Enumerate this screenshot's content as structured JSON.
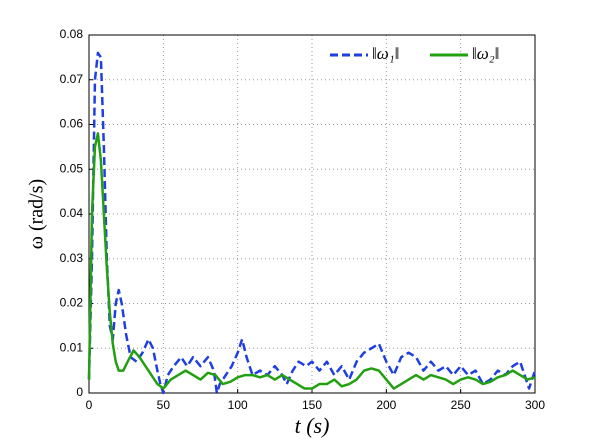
{
  "chart_data": {
    "type": "line",
    "xlabel": "t (s)",
    "ylabel": "ω (rad/s)",
    "xlim": [
      0,
      300
    ],
    "xticks": [
      0,
      50,
      100,
      150,
      200,
      250,
      300
    ],
    "ylim": [
      0,
      0.08
    ],
    "yticks": [
      0,
      0.01,
      0.02,
      0.03,
      0.04,
      0.05,
      0.06,
      0.07,
      0.08
    ],
    "grid": true,
    "legend": "upper right",
    "series": [
      {
        "name": "‖ω₁‖",
        "color": "#1f3fe0",
        "dashed": true,
        "x": [
          0,
          2,
          4,
          6,
          8,
          10,
          12,
          14,
          16,
          18,
          20,
          22,
          25,
          28,
          32,
          36,
          40,
          43,
          46,
          48,
          50,
          53,
          57,
          62,
          66,
          70,
          75,
          80,
          84,
          86,
          88,
          92,
          96,
          100,
          103,
          106,
          110,
          115,
          120,
          125,
          130,
          133,
          137,
          141,
          146,
          150,
          155,
          160,
          165,
          170,
          175,
          180,
          185,
          190,
          195,
          200,
          205,
          210,
          215,
          220,
          225,
          230,
          235,
          240,
          245,
          250,
          255,
          260,
          265,
          270,
          275,
          280,
          285,
          290,
          293,
          296,
          300
        ],
        "values": [
          0.003,
          0.03,
          0.07,
          0.076,
          0.075,
          0.055,
          0.03,
          0.015,
          0.012,
          0.02,
          0.023,
          0.02,
          0.013,
          0.008,
          0.007,
          0.009,
          0.012,
          0.01,
          0.005,
          0.002,
          0.0,
          0.004,
          0.006,
          0.008,
          0.006,
          0.008,
          0.006,
          0.008,
          0.005,
          0.0,
          0.002,
          0.004,
          0.006,
          0.009,
          0.012,
          0.008,
          0.004,
          0.005,
          0.004,
          0.006,
          0.004,
          0.002,
          0.005,
          0.007,
          0.006,
          0.007,
          0.005,
          0.007,
          0.004,
          0.006,
          0.003,
          0.007,
          0.009,
          0.01,
          0.011,
          0.007,
          0.004,
          0.008,
          0.009,
          0.008,
          0.005,
          0.007,
          0.005,
          0.006,
          0.004,
          0.006,
          0.004,
          0.005,
          0.002,
          0.003,
          0.005,
          0.004,
          0.006,
          0.007,
          0.004,
          0.001,
          0.005
        ]
      },
      {
        "name": "‖ω₂‖",
        "color": "#22a010",
        "dashed": false,
        "x": [
          0,
          2,
          4,
          6,
          8,
          10,
          12,
          14,
          16,
          18,
          20,
          23,
          26,
          30,
          34,
          38,
          42,
          46,
          50,
          55,
          60,
          65,
          70,
          75,
          80,
          85,
          90,
          95,
          100,
          105,
          110,
          115,
          120,
          125,
          130,
          135,
          140,
          145,
          150,
          155,
          160,
          165,
          170,
          175,
          180,
          185,
          190,
          195,
          200,
          205,
          210,
          215,
          220,
          225,
          230,
          235,
          240,
          245,
          250,
          255,
          260,
          265,
          270,
          275,
          280,
          285,
          290,
          295,
          300
        ],
        "values": [
          0.003,
          0.04,
          0.055,
          0.058,
          0.052,
          0.04,
          0.028,
          0.018,
          0.011,
          0.007,
          0.005,
          0.005,
          0.007,
          0.0095,
          0.008,
          0.006,
          0.004,
          0.002,
          0.001,
          0.003,
          0.004,
          0.005,
          0.004,
          0.003,
          0.0045,
          0.004,
          0.002,
          0.0025,
          0.0035,
          0.004,
          0.004,
          0.0035,
          0.004,
          0.003,
          0.004,
          0.003,
          0.002,
          0.001,
          0.001,
          0.002,
          0.002,
          0.003,
          0.0015,
          0.002,
          0.003,
          0.005,
          0.0055,
          0.005,
          0.003,
          0.001,
          0.002,
          0.003,
          0.004,
          0.003,
          0.004,
          0.0035,
          0.003,
          0.002,
          0.003,
          0.0035,
          0.003,
          0.002,
          0.0025,
          0.0035,
          0.004,
          0.005,
          0.004,
          0.003,
          0.0035
        ]
      }
    ]
  }
}
